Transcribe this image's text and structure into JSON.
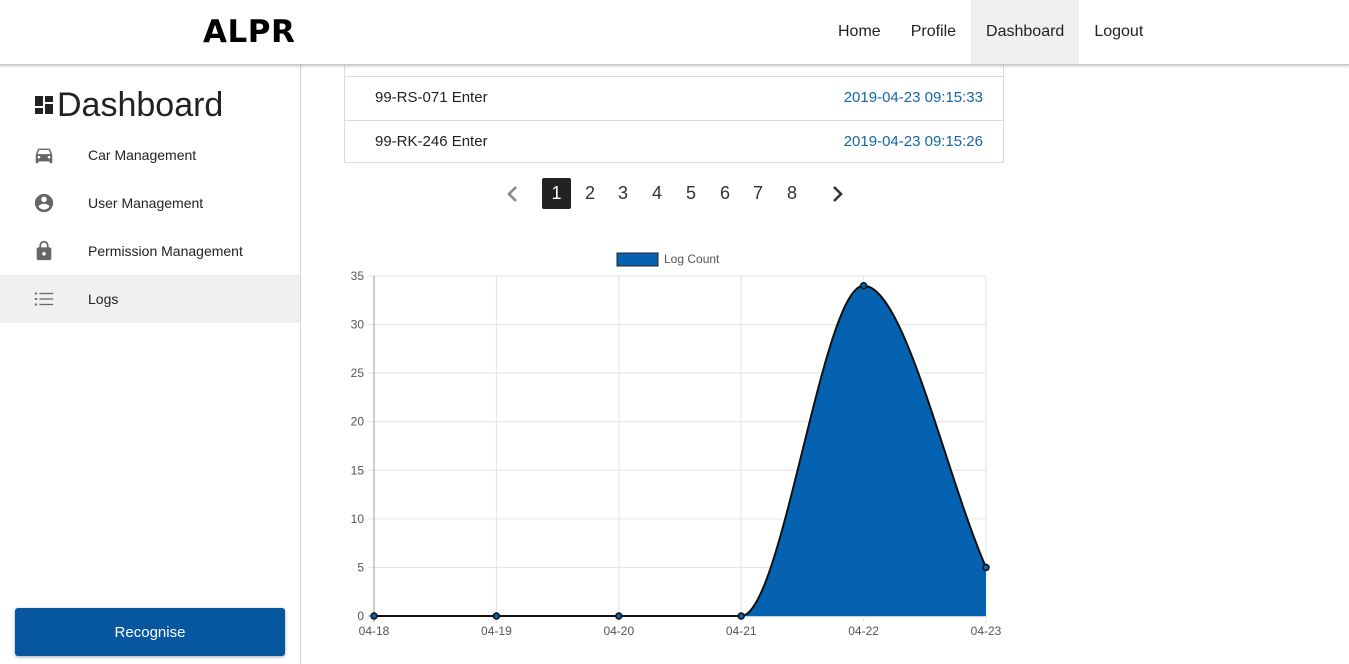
{
  "header": {
    "brand": "ALPR",
    "nav": [
      {
        "label": "Home",
        "active": false
      },
      {
        "label": "Profile",
        "active": false
      },
      {
        "label": "Dashboard",
        "active": true
      },
      {
        "label": "Logout",
        "active": false
      }
    ]
  },
  "sidebar": {
    "title": "Dashboard",
    "title_icon": "dashboard-grid-icon",
    "items": [
      {
        "label": "Car Management",
        "icon": "car-icon"
      },
      {
        "label": "User Management",
        "icon": "user-circle-icon"
      },
      {
        "label": "Permission Management",
        "icon": "lock-icon"
      },
      {
        "label": "Logs",
        "icon": "list-icon",
        "active": true
      }
    ],
    "button": "Recognise"
  },
  "logs": {
    "rows": [
      {
        "plate": "99-RS-071 Enter",
        "time": "2019-04-23 09:15:33"
      },
      {
        "plate": "99-RK-246 Enter",
        "time": "2019-04-23 09:15:26"
      }
    ]
  },
  "pagination": {
    "prev_icon": "chevron-left-icon",
    "next_icon": "chevron-right-icon",
    "pages": [
      "1",
      "2",
      "3",
      "4",
      "5",
      "6",
      "7",
      "8"
    ],
    "current": "1"
  },
  "colors": {
    "accent": "#06579f",
    "chart_fill": "#0562b0",
    "link": "#1565a8"
  },
  "chart_data": {
    "type": "area",
    "categories": [
      "04-18",
      "04-19",
      "04-20",
      "04-21",
      "04-22",
      "04-23"
    ],
    "series": [
      {
        "name": "Log Count",
        "values": [
          0,
          0,
          0,
          0,
          34,
          5
        ]
      }
    ],
    "ylim": [
      0,
      35
    ],
    "yticks": [
      0,
      5,
      10,
      15,
      20,
      25,
      30,
      35
    ],
    "legend": "top",
    "grid": true
  }
}
